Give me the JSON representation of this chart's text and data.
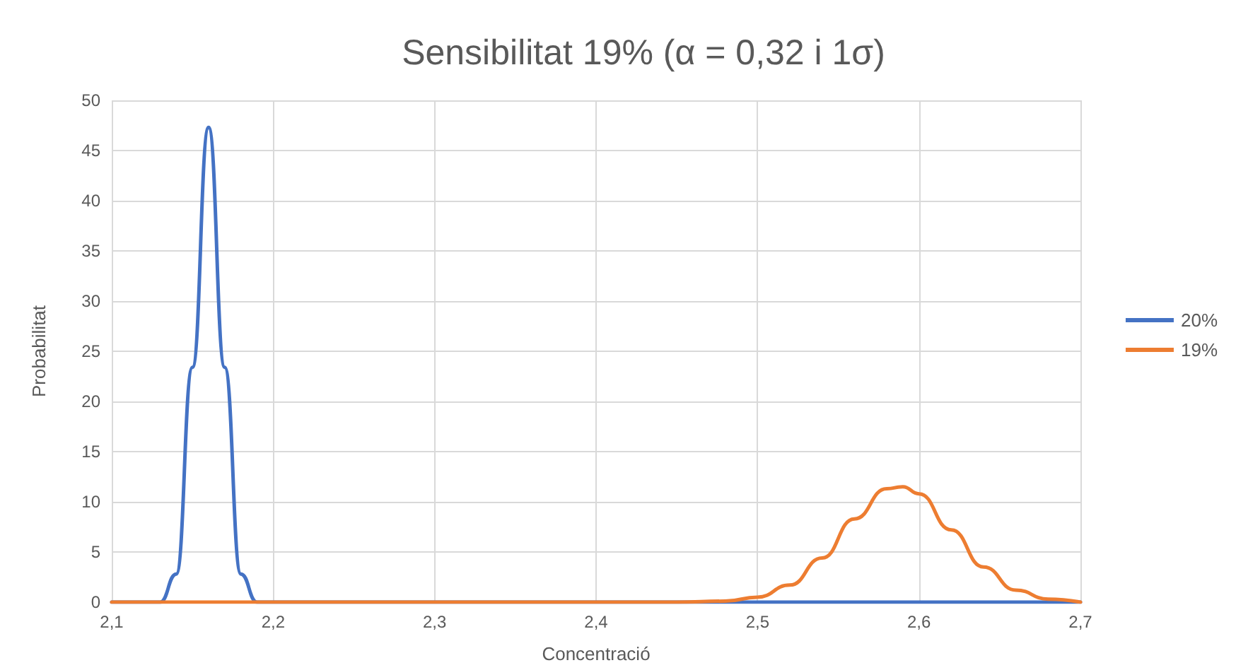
{
  "chart_data": {
    "type": "line",
    "title": "Sensibilitat 19% (α = 0,32 i 1σ)",
    "xlabel": "Concentració",
    "ylabel": "Probabilitat",
    "series": [
      {
        "name": "20%",
        "color": "#4472c4",
        "x": [
          2.1,
          2.13,
          2.14,
          2.15,
          2.16,
          2.17,
          2.18,
          2.19,
          2.7
        ],
        "values": [
          0,
          0,
          2.8,
          23.4,
          47.3,
          23.4,
          2.8,
          0,
          0
        ]
      },
      {
        "name": "19%",
        "color": "#ed7d31",
        "x": [
          2.1,
          2.45,
          2.48,
          2.5,
          2.52,
          2.54,
          2.56,
          2.58,
          2.59,
          2.6,
          2.62,
          2.64,
          2.66,
          2.68,
          2.7
        ],
        "values": [
          0,
          0,
          0.1,
          0.5,
          1.7,
          4.4,
          8.3,
          11.3,
          11.5,
          10.8,
          7.2,
          3.5,
          1.2,
          0.3,
          0
        ]
      }
    ],
    "xlim": [
      2.1,
      2.7
    ],
    "xticks": [
      {
        "value": 2.1,
        "label": "2,1"
      },
      {
        "value": 2.2,
        "label": "2,2"
      },
      {
        "value": 2.3,
        "label": "2,3"
      },
      {
        "value": 2.4,
        "label": "2,4"
      },
      {
        "value": 2.5,
        "label": "2,5"
      },
      {
        "value": 2.6,
        "label": "2,6"
      },
      {
        "value": 2.7,
        "label": "2,7"
      }
    ],
    "ylim": [
      0,
      50
    ],
    "yticks": [
      0,
      5,
      10,
      15,
      20,
      25,
      30,
      35,
      40,
      45,
      50
    ],
    "grid": true,
    "legend": "right",
    "marker": "none",
    "line_style": "solid"
  }
}
